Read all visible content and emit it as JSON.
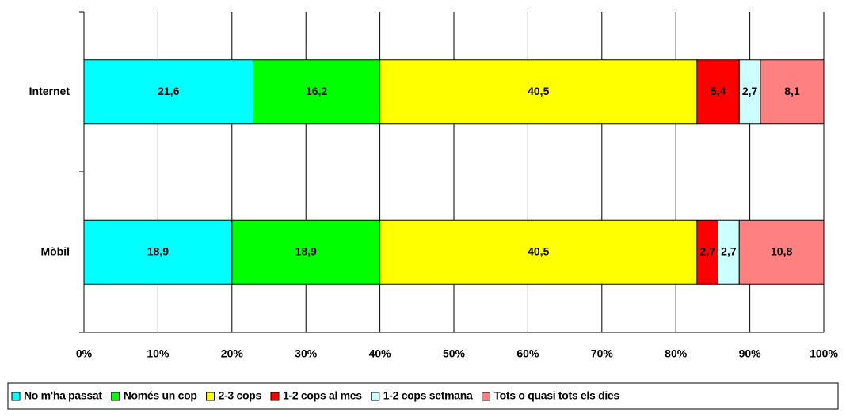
{
  "chart_data": {
    "type": "bar",
    "orientation": "horizontal",
    "stacked": "percent",
    "categories": [
      "Internet",
      "Mòbil"
    ],
    "series": [
      {
        "name": "No m'ha passat",
        "color": "#00ffff",
        "values": [
          21.6,
          18.9
        ],
        "value_labels": [
          "21,6",
          "18,9"
        ]
      },
      {
        "name": "Només un cop",
        "color": "#00ff00",
        "values": [
          16.2,
          18.9
        ],
        "value_labels": [
          "16,2",
          "18,9"
        ]
      },
      {
        "name": "2-3 cops",
        "color": "#ffff00",
        "values": [
          40.5,
          40.5
        ],
        "value_labels": [
          "40,5",
          "40,5"
        ]
      },
      {
        "name": "1-2 cops al mes",
        "color": "#ff0000",
        "values": [
          5.4,
          2.7
        ],
        "value_labels": [
          "5,4",
          "2,7"
        ]
      },
      {
        "name": "1-2 cops setmana",
        "color": "#ccffff",
        "values": [
          2.7,
          2.7
        ],
        "value_labels": [
          "2,7",
          "2,7"
        ]
      },
      {
        "name": "Tots o quasi tots els dies",
        "color": "#ff8080",
        "values": [
          8.1,
          10.8
        ],
        "value_labels": [
          "8,1",
          "10,8"
        ]
      }
    ],
    "xlim": [
      0,
      100
    ],
    "xticks": [
      {
        "value": 0,
        "label": "0%"
      },
      {
        "value": 10,
        "label": "10%"
      },
      {
        "value": 20,
        "label": "20%"
      },
      {
        "value": 30,
        "label": "30%"
      },
      {
        "value": 40,
        "label": "40%"
      },
      {
        "value": 50,
        "label": "50%"
      },
      {
        "value": 60,
        "label": "60%"
      },
      {
        "value": 70,
        "label": "70%"
      },
      {
        "value": 80,
        "label": "80%"
      },
      {
        "value": 90,
        "label": "90%"
      },
      {
        "value": 100,
        "label": "100%"
      }
    ],
    "grid": true,
    "legend": "bottom"
  }
}
